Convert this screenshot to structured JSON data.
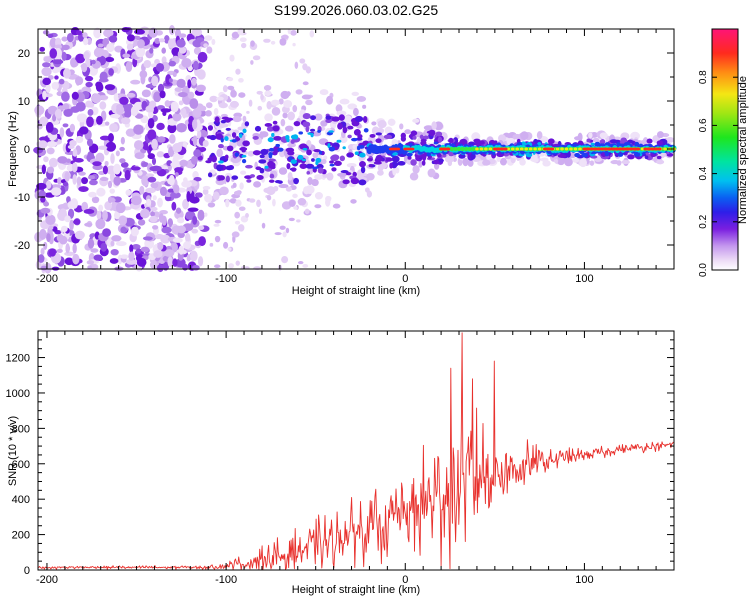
{
  "title": "S199.2026.060.03.02.G25",
  "chart_data": [
    {
      "type": "heatmap",
      "xlabel": "Height of straight line (km)",
      "ylabel": "Frequency (Hz)",
      "xlim": [
        -205,
        150
      ],
      "ylim": [
        -25,
        25
      ],
      "xticks": [
        -200,
        -100,
        0,
        100
      ],
      "yticks": [
        -20,
        -10,
        0,
        10,
        20
      ],
      "colorbar": {
        "label": "Normalized spectral amplitude",
        "range": [
          0,
          1
        ],
        "ticks": [
          "0.0",
          "0.2",
          "0.4",
          "0.6",
          "0.8"
        ]
      },
      "ridge_frequency_hz": 0
    },
    {
      "type": "line",
      "xlabel": "Height of straight line (km)",
      "ylabel": "SNR (10 * v/v)",
      "xlim": [
        -205,
        150
      ],
      "ylim": [
        0,
        1350
      ],
      "xticks": [
        -200,
        -100,
        0,
        100
      ],
      "yticks": [
        0,
        200,
        400,
        600,
        800,
        1000,
        1200
      ],
      "color": "#e8302c",
      "envelope": {
        "x": [
          -205,
          -110,
          -100,
          -80,
          -60,
          -40,
          -20,
          0,
          20,
          30,
          40,
          50,
          60,
          70,
          80,
          100,
          120,
          150
        ],
        "baseline": [
          15,
          15,
          25,
          50,
          110,
          170,
          250,
          320,
          420,
          480,
          520,
          560,
          580,
          600,
          620,
          650,
          680,
          710
        ],
        "amplitude": [
          10,
          12,
          30,
          90,
          160,
          200,
          230,
          280,
          450,
          500,
          430,
          320,
          200,
          130,
          80,
          45,
          35,
          30
        ]
      },
      "peaks": [
        {
          "x": 31.5,
          "y": 1340
        },
        {
          "x": 49.5,
          "y": 1180
        },
        {
          "x": 25.5,
          "y": 1140
        },
        {
          "x": 37.5,
          "y": 1080
        }
      ]
    }
  ]
}
